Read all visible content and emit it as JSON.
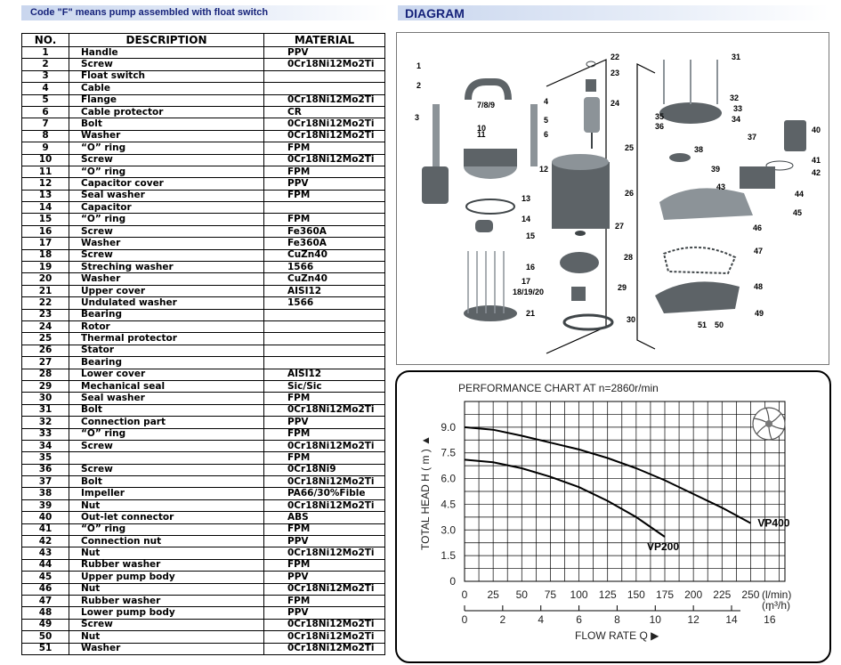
{
  "banner_left": "Code \"F\" means pump assembled with float switch",
  "banner_right": "DIAGRAM",
  "table": {
    "headers": [
      "NO.",
      "DESCRIPTION",
      "MATERIAL"
    ],
    "rows": [
      [
        "1",
        "Handle",
        "PPV"
      ],
      [
        "2",
        "Screw",
        "0Cr18Ni12Mo2Ti"
      ],
      [
        "3",
        "Float switch",
        ""
      ],
      [
        "4",
        "Cable",
        ""
      ],
      [
        "5",
        "Flange",
        "0Cr18Ni12Mo2Ti"
      ],
      [
        "6",
        "Cable protector",
        "CR"
      ],
      [
        "7",
        "Bolt",
        "0Cr18Ni12Mo2Ti"
      ],
      [
        "8",
        "Washer",
        "0Cr18Ni12Mo2Ti"
      ],
      [
        "9",
        "“O” ring",
        "FPM"
      ],
      [
        "10",
        "Screw",
        "0Cr18Ni12Mo2Ti"
      ],
      [
        "11",
        "“O” ring",
        "FPM"
      ],
      [
        "12",
        "Capacitor cover",
        "PPV"
      ],
      [
        "13",
        "Seal washer",
        "FPM"
      ],
      [
        "14",
        "Capacitor",
        ""
      ],
      [
        "15",
        "“O” ring",
        "FPM"
      ],
      [
        "16",
        "Screw",
        "Fe360A"
      ],
      [
        "17",
        "Washer",
        "Fe360A"
      ],
      [
        "18",
        "Screw",
        "CuZn40"
      ],
      [
        "19",
        "Streching washer",
        "1566"
      ],
      [
        "20",
        "Washer",
        "CuZn40"
      ],
      [
        "21",
        "Upper cover",
        "AISI12"
      ],
      [
        "22",
        "Undulated washer",
        "1566"
      ],
      [
        "23",
        "Bearing",
        ""
      ],
      [
        "24",
        "Rotor",
        ""
      ],
      [
        "25",
        "Thermal protector",
        ""
      ],
      [
        "26",
        "Stator",
        ""
      ],
      [
        "27",
        "Bearing",
        ""
      ],
      [
        "28",
        "Lower cover",
        "AISI12"
      ],
      [
        "29",
        "Mechanical seal",
        "Sic/Sic"
      ],
      [
        "30",
        "Seal washer",
        "FPM"
      ],
      [
        "31",
        "Bolt",
        "0Cr18Ni12Mo2Ti"
      ],
      [
        "32",
        "Connection part",
        "PPV"
      ],
      [
        "33",
        "“O” ring",
        "FPM"
      ],
      [
        "34",
        "Screw",
        "0Cr18Ni12Mo2Ti"
      ],
      [
        "35",
        "",
        "FPM"
      ],
      [
        "36",
        "Screw",
        "0Cr18Ni9"
      ],
      [
        "37",
        "Bolt",
        "0Cr18Ni12Mo2Ti"
      ],
      [
        "38",
        "Impeller",
        "PA66/30%Fible"
      ],
      [
        "39",
        "Nut",
        "0Cr18Ni12Mo2Ti"
      ],
      [
        "40",
        "Out-let connector",
        "ABS"
      ],
      [
        "41",
        "“O” ring",
        "FPM"
      ],
      [
        "42",
        "Connection nut",
        "PPV"
      ],
      [
        "43",
        "Nut",
        "0Cr18Ni12Mo2Ti"
      ],
      [
        "44",
        "Rubber washer",
        "FPM"
      ],
      [
        "45",
        "Upper pump body",
        "PPV"
      ],
      [
        "46",
        "Nut",
        "0Cr18Ni12Mo2Ti"
      ],
      [
        "47",
        "Rubber washer",
        "FPM"
      ],
      [
        "48",
        "Lower pump body",
        "PPV"
      ],
      [
        "49",
        "Screw",
        "0Cr18Ni12Mo2Ti"
      ],
      [
        "50",
        "Nut",
        "0Cr18Ni12Mo2Ti"
      ],
      [
        "51",
        "Washer",
        "0Cr18Ni12Mo2Ti"
      ]
    ]
  },
  "diagram": {
    "labels": [
      "1",
      "2",
      "3",
      "4",
      "5",
      "6",
      "7/8/9",
      "10",
      "11",
      "12",
      "13",
      "14",
      "15",
      "16",
      "17",
      "18/19/20",
      "21",
      "22",
      "23",
      "24",
      "25",
      "26",
      "27",
      "28",
      "29",
      "30",
      "31",
      "32",
      "33",
      "34",
      "35",
      "36",
      "37",
      "38",
      "39",
      "40",
      "41",
      "42",
      "43",
      "44",
      "45",
      "46",
      "47",
      "48",
      "49",
      "50",
      "51"
    ]
  },
  "chart_data": {
    "type": "line",
    "title": "PERFORMANCE CHART AT n=2860r/min",
    "ylabel": "TOTAL HEAD H ( m ) ▲",
    "xlabel": "FLOW RATE Q ▶",
    "x_unit": "(l/min)",
    "x2_unit": "(m³/h)",
    "ylim": [
      0,
      10.5
    ],
    "xlim": [
      0,
      280
    ],
    "y_ticks": [
      "0",
      "1.5",
      "3.0",
      "4.5",
      "6.0",
      "7.5",
      "9.0"
    ],
    "x_ticks": [
      "0",
      "25",
      "50",
      "75",
      "100",
      "125",
      "150",
      "175",
      "200",
      "225",
      "250"
    ],
    "x2_ticks": [
      "0",
      "2",
      "4",
      "6",
      "8",
      "10",
      "12",
      "14",
      "16"
    ],
    "grid": true,
    "series": [
      {
        "name": "VP400",
        "x": [
          0,
          25,
          50,
          75,
          100,
          125,
          150,
          175,
          200,
          225,
          250
        ],
        "y": [
          9.0,
          8.85,
          8.5,
          8.1,
          7.7,
          7.2,
          6.6,
          5.9,
          5.1,
          4.3,
          3.4
        ]
      },
      {
        "name": "VP200",
        "x": [
          0,
          25,
          50,
          75,
          100,
          125,
          150,
          175
        ],
        "y": [
          7.1,
          6.95,
          6.6,
          6.1,
          5.5,
          4.7,
          3.75,
          2.6
        ]
      }
    ],
    "colors": {
      "line": "#000000",
      "grid": "#000000"
    }
  }
}
